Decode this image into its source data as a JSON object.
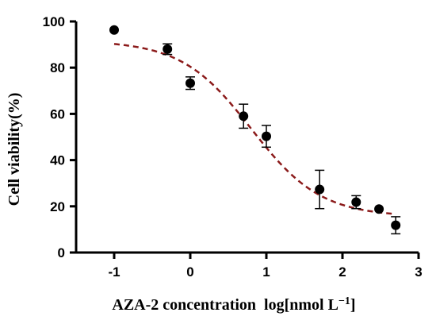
{
  "chart_data": {
    "type": "scatter",
    "xlabel": "AZA-2 concentration  log[nmol L",
    "xlabel_superscript": "−1",
    "xlabel_suffix": "]",
    "ylabel": "Cell viability(%)",
    "xlim": [
      -1.5,
      3
    ],
    "ylim": [
      0,
      100
    ],
    "x_ticks": [
      -1,
      0,
      1,
      2,
      3
    ],
    "x_tick_labels": [
      "-1",
      "0",
      "1",
      "2",
      "3"
    ],
    "y_ticks": [
      0,
      20,
      40,
      60,
      80,
      100
    ],
    "y_tick_labels": [
      "0",
      "20",
      "40",
      "60",
      "80",
      "100"
    ],
    "grid": false,
    "series": [
      {
        "points": [
          {
            "x": -1.0,
            "y": 96.3,
            "err": 0
          },
          {
            "x": -0.3,
            "y": 88.0,
            "err": 2.3
          },
          {
            "x": 0.0,
            "y": 73.3,
            "err": 2.7
          },
          {
            "x": 0.7,
            "y": 59.0,
            "err": 5.2
          },
          {
            "x": 1.0,
            "y": 50.3,
            "err": 4.7
          },
          {
            "x": 1.7,
            "y": 27.3,
            "err": 8.3
          },
          {
            "x": 2.18,
            "y": 21.8,
            "err": 2.8
          },
          {
            "x": 2.48,
            "y": 18.8,
            "err": 0
          },
          {
            "x": 2.7,
            "y": 11.8,
            "err": 3.7
          }
        ]
      }
    ],
    "fit_curve": {
      "model": "four-parameter logistic",
      "bottom": 15.5,
      "top": 91.7,
      "log_ic50": 0.8,
      "hill_slope": -0.95,
      "x_range": [
        -1.0,
        2.7
      ],
      "color": "#8b1a1a",
      "style": "dashed"
    },
    "marker_color": "#000000"
  }
}
